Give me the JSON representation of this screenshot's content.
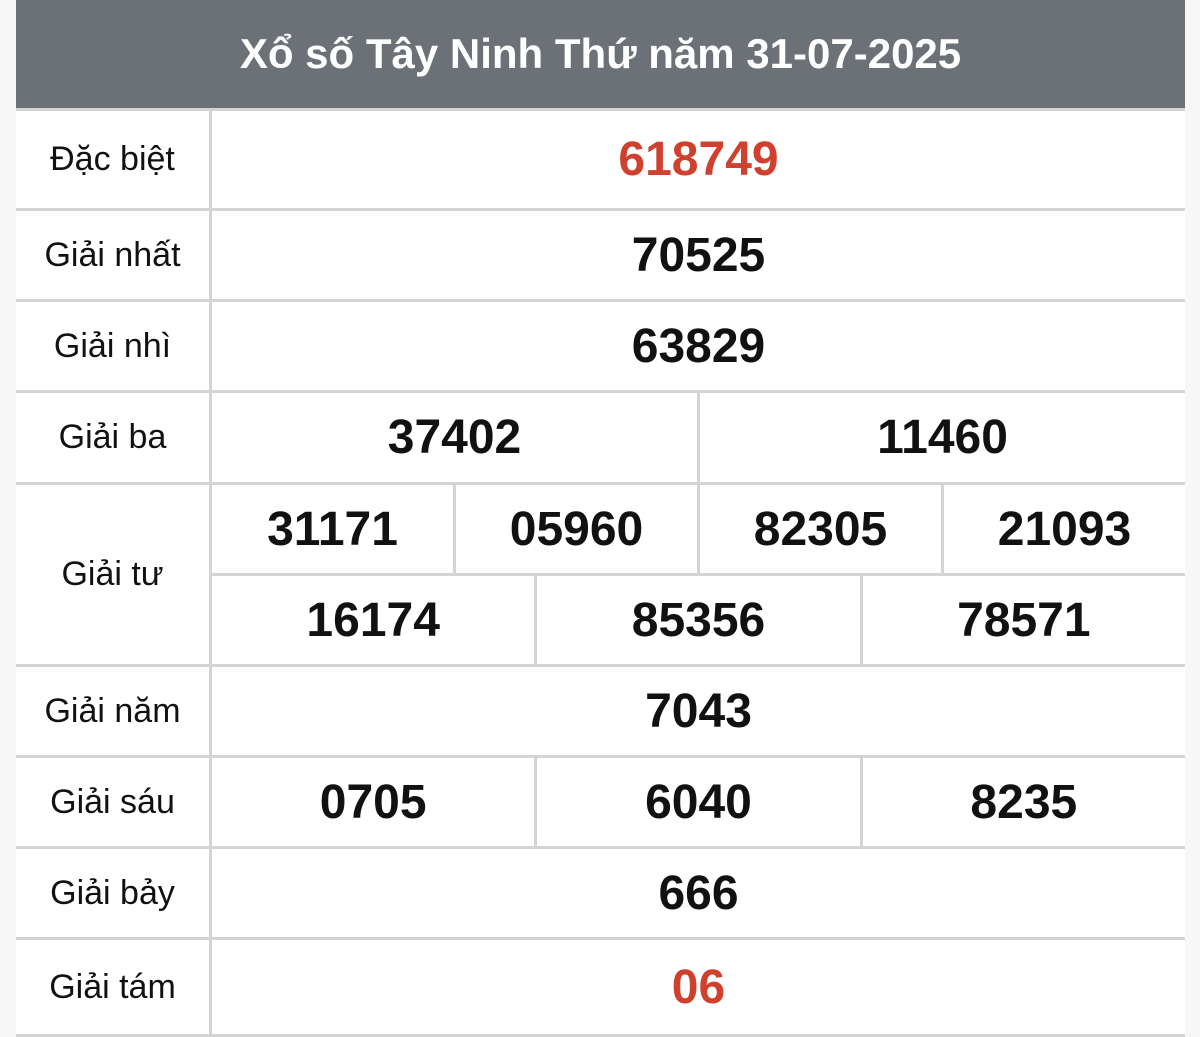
{
  "title": "Xổ số Tây Ninh Thứ năm 31-07-2025",
  "colors": {
    "header_bg": "#6b7177",
    "highlight": "#d0402f"
  },
  "prizes": [
    {
      "label": "Đặc biệt",
      "rows": [
        [
          "618749"
        ]
      ],
      "highlight": true
    },
    {
      "label": "Giải nhất",
      "rows": [
        [
          "70525"
        ]
      ]
    },
    {
      "label": "Giải nhì",
      "rows": [
        [
          "63829"
        ]
      ]
    },
    {
      "label": "Giải ba",
      "rows": [
        [
          "37402",
          "11460"
        ]
      ]
    },
    {
      "label": "Giải tư",
      "rows": [
        [
          "31171",
          "05960",
          "82305",
          "21093"
        ],
        [
          "16174",
          "85356",
          "78571"
        ]
      ]
    },
    {
      "label": "Giải năm",
      "rows": [
        [
          "7043"
        ]
      ]
    },
    {
      "label": "Giải sáu",
      "rows": [
        [
          "0705",
          "6040",
          "8235"
        ]
      ]
    },
    {
      "label": "Giải bảy",
      "rows": [
        [
          "666"
        ]
      ]
    },
    {
      "label": "Giải tám",
      "rows": [
        [
          "06"
        ]
      ],
      "highlight": true
    }
  ]
}
